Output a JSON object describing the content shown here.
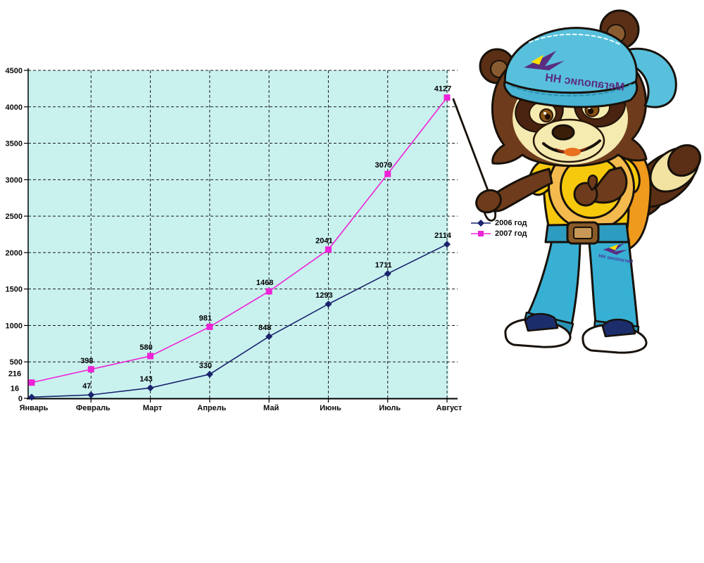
{
  "chart_data": {
    "type": "line",
    "title": "",
    "xlabel": "",
    "ylabel": "",
    "categories": [
      "Январь",
      "Февраль",
      "Март",
      "Апрель",
      "Май",
      "Июнь",
      "Июль",
      "Август"
    ],
    "series": [
      {
        "name": "2006 год",
        "color": "#1a246e",
        "marker": "diamond",
        "values": [
          16,
          47,
          143,
          330,
          848,
          1293,
          1711,
          2114
        ]
      },
      {
        "name": "2007 год",
        "color": "#ee22d6",
        "marker": "square",
        "values": [
          216,
          398,
          580,
          981,
          1468,
          2041,
          3079,
          4127
        ]
      }
    ],
    "ylim": [
      0,
      4500
    ],
    "ytick_step": 500,
    "grid": "dashed-black-horizontal-and-vertical",
    "plot_background": "#c9f2ef",
    "data_labels": true,
    "legend_position": "right-middle"
  },
  "mascot": {
    "cap_text": "Мегаполис НН",
    "jeans_text": "Мегаполис НН"
  }
}
